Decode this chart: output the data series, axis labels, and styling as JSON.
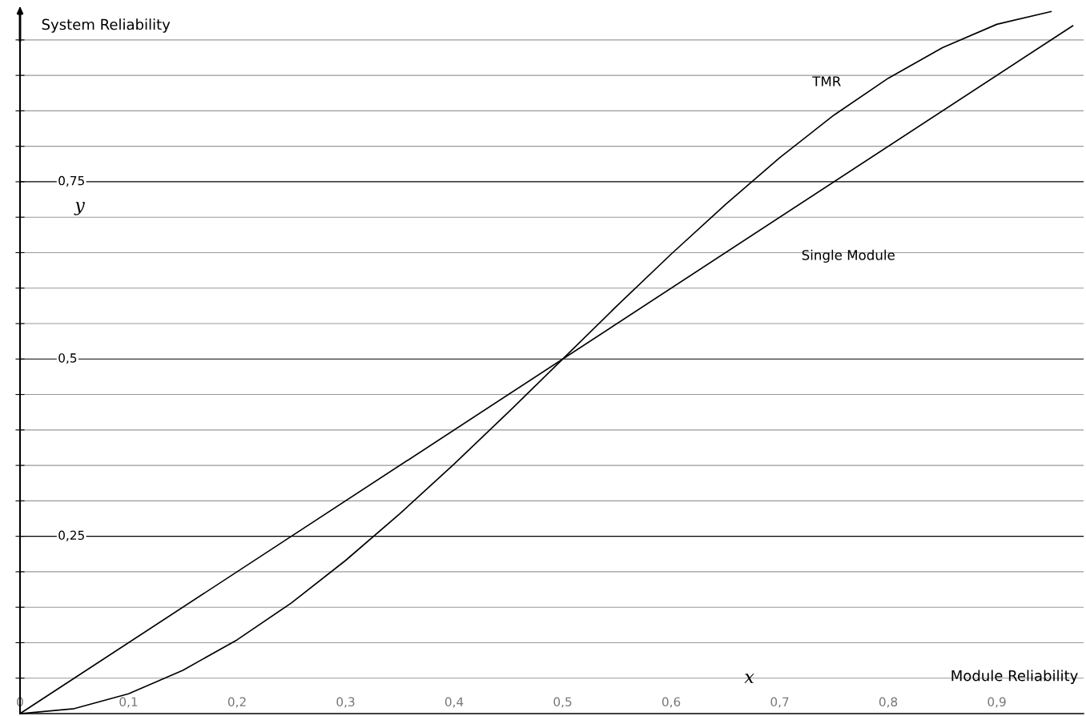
{
  "chart_data": {
    "type": "line",
    "xlabel": "Module Reliability",
    "ylabel": "System Reliability",
    "annotations": [
      "y",
      "x"
    ],
    "x": [
      0,
      0.05,
      0.1,
      0.15,
      0.2,
      0.25,
      0.3,
      0.35,
      0.4,
      0.45,
      0.5,
      0.55,
      0.6,
      0.65,
      0.7,
      0.75,
      0.8,
      0.85,
      0.9,
      0.95
    ],
    "series": [
      {
        "name": "TMR",
        "color": "#000000",
        "values": [
          0,
          0.007,
          0.028,
          0.061,
          0.104,
          0.156,
          0.216,
          0.282,
          0.352,
          0.425,
          0.5,
          0.575,
          0.648,
          0.718,
          0.784,
          0.844,
          0.896,
          0.939,
          0.972,
          0.99
        ]
      },
      {
        "name": "Single Module",
        "color": "#000000",
        "x": [
          0,
          0.97
        ],
        "values": [
          0,
          0.97
        ]
      }
    ],
    "xlim": [
      0,
      0.98
    ],
    "ylim": [
      0,
      0.995
    ],
    "xticks": [
      {
        "value": 0,
        "label": "0"
      },
      {
        "value": 0.1,
        "label": "0,1"
      },
      {
        "value": 0.2,
        "label": "0,2"
      },
      {
        "value": 0.3,
        "label": "0,3"
      },
      {
        "value": 0.4,
        "label": "0,4"
      },
      {
        "value": 0.5,
        "label": "0,5"
      },
      {
        "value": 0.6,
        "label": "0,6"
      },
      {
        "value": 0.7,
        "label": "0,7"
      },
      {
        "value": 0.8,
        "label": "0,8"
      },
      {
        "value": 0.9,
        "label": "0,9"
      }
    ],
    "yticks": [
      {
        "value": 0.05,
        "label": null
      },
      {
        "value": 0.1,
        "label": null
      },
      {
        "value": 0.15,
        "label": null
      },
      {
        "value": 0.2,
        "label": null
      },
      {
        "value": 0.25,
        "label": "0,25"
      },
      {
        "value": 0.3,
        "label": null
      },
      {
        "value": 0.35,
        "label": null
      },
      {
        "value": 0.4,
        "label": null
      },
      {
        "value": 0.45,
        "label": null
      },
      {
        "value": 0.5,
        "label": "0,5"
      },
      {
        "value": 0.55,
        "label": null
      },
      {
        "value": 0.6,
        "label": null
      },
      {
        "value": 0.65,
        "label": null
      },
      {
        "value": 0.7,
        "label": null
      },
      {
        "value": 0.75,
        "label": "0,75"
      },
      {
        "value": 0.8,
        "label": null
      },
      {
        "value": 0.85,
        "label": null
      },
      {
        "value": 0.9,
        "label": null
      },
      {
        "value": 0.95,
        "label": null
      }
    ],
    "grid": "y",
    "marker": "none",
    "line_style": "solid"
  }
}
